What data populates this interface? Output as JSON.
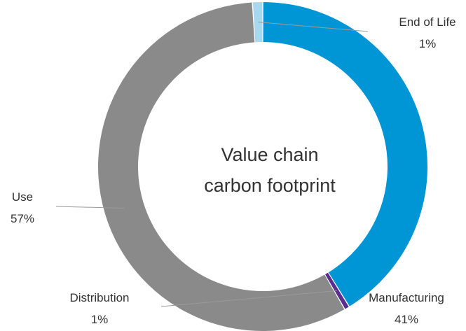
{
  "chart_data": {
    "type": "pie",
    "style": "donut",
    "title": "Value chain carbon footprint",
    "title_lines": [
      "Value chain",
      "carbon footprint"
    ],
    "slices": [
      {
        "label": "Manufacturing",
        "value": 41,
        "value_label": "41%",
        "color": "#0096D6"
      },
      {
        "label": "Distribution",
        "value": 0.5,
        "value_label": "1%",
        "color": "#5B2D8E"
      },
      {
        "label": "Use",
        "value": 57,
        "value_label": "57%",
        "color": "#8A8A8A"
      },
      {
        "label": "End of Life",
        "value": 1,
        "value_label": "1%",
        "color": "#A8D8F0"
      }
    ],
    "legend": "none",
    "start_angle": "top",
    "direction": "clockwise"
  }
}
